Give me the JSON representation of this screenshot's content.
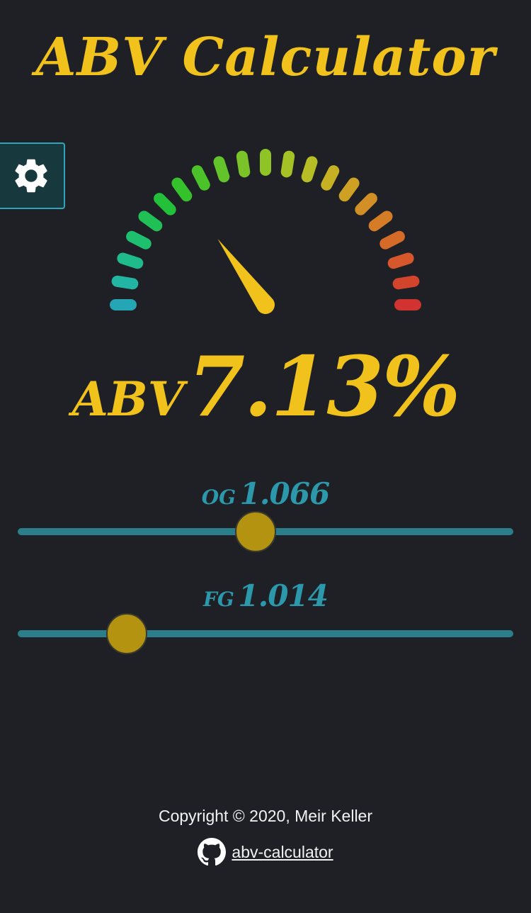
{
  "app": {
    "title": "ABV Calculator"
  },
  "gauge": {
    "tick_count": 21,
    "level": 0.3,
    "needle_color": "#f1c21b",
    "tick_colors": [
      "#24a6b4",
      "#22b5a3",
      "#20bb8a",
      "#1fbf70",
      "#21c056",
      "#23c03a",
      "#35c12c",
      "#4cc22a",
      "#62c32a",
      "#7ac329",
      "#8fc427",
      "#a4c226",
      "#b7bd25",
      "#c6b125",
      "#cea124",
      "#d28f25",
      "#d57c27",
      "#d66a29",
      "#d5572b",
      "#d3442d",
      "#d03330"
    ]
  },
  "result": {
    "label": "ABV",
    "value": "7.13%"
  },
  "og": {
    "label": "OG",
    "value": "1.066",
    "position": 0.48
  },
  "fg": {
    "label": "FG",
    "value": "1.014",
    "position": 0.22
  },
  "colors": {
    "accent": "#f1c21b",
    "slider_track": "#2a7f8b",
    "slider_label": "#2c98ab",
    "thumb": "#b39310"
  },
  "footer": {
    "copyright": "Copyright © 2020, Meir Keller",
    "repo_link": "abv-calculator"
  },
  "icons": {
    "settings": "gear-icon",
    "repo": "github-icon"
  }
}
